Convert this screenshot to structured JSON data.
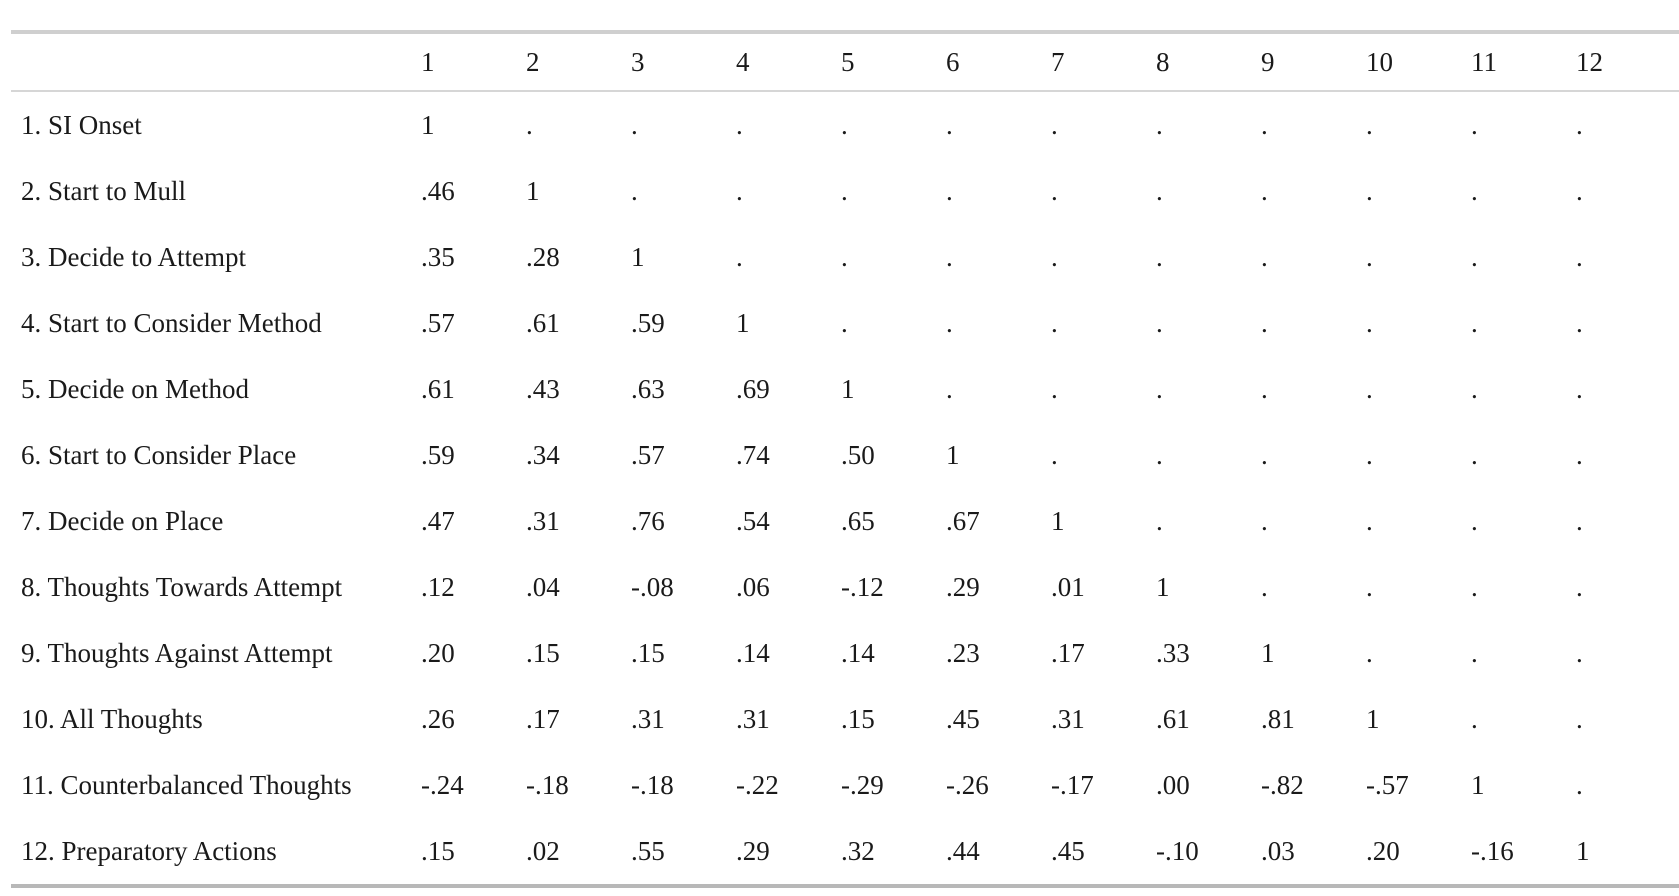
{
  "table": {
    "column_headers": [
      "",
      "1",
      "2",
      "3",
      "4",
      "5",
      "6",
      "7",
      "8",
      "9",
      "10",
      "11",
      "12"
    ],
    "rows": [
      {
        "label": "1. SI Onset",
        "cells": [
          "1",
          ".",
          ".",
          ".",
          ".",
          ".",
          ".",
          ".",
          ".",
          ".",
          ".",
          "."
        ]
      },
      {
        "label": "2. Start to Mull",
        "cells": [
          ".46",
          "1",
          ".",
          ".",
          ".",
          ".",
          ".",
          ".",
          ".",
          ".",
          ".",
          "."
        ]
      },
      {
        "label": "3. Decide to Attempt",
        "cells": [
          ".35",
          ".28",
          "1",
          ".",
          ".",
          ".",
          ".",
          ".",
          ".",
          ".",
          ".",
          "."
        ]
      },
      {
        "label": "4. Start to Consider Method",
        "cells": [
          ".57",
          ".61",
          ".59",
          "1",
          ".",
          ".",
          ".",
          ".",
          ".",
          ".",
          ".",
          "."
        ]
      },
      {
        "label": "5. Decide on Method",
        "cells": [
          ".61",
          ".43",
          ".63",
          ".69",
          "1",
          ".",
          ".",
          ".",
          ".",
          ".",
          ".",
          "."
        ]
      },
      {
        "label": "6. Start to Consider Place",
        "cells": [
          ".59",
          ".34",
          ".57",
          ".74",
          ".50",
          "1",
          ".",
          ".",
          ".",
          ".",
          ".",
          "."
        ]
      },
      {
        "label": "7. Decide on Place",
        "cells": [
          ".47",
          ".31",
          ".76",
          ".54",
          ".65",
          ".67",
          "1",
          ".",
          ".",
          ".",
          ".",
          "."
        ]
      },
      {
        "label": "8. Thoughts Towards Attempt",
        "cells": [
          ".12",
          ".04",
          "-.08",
          ".06",
          "-.12",
          ".29",
          ".01",
          "1",
          ".",
          ".",
          ".",
          "."
        ]
      },
      {
        "label": "9. Thoughts Against Attempt",
        "cells": [
          ".20",
          ".15",
          ".15",
          ".14",
          ".14",
          ".23",
          ".17",
          ".33",
          "1",
          ".",
          ".",
          "."
        ]
      },
      {
        "label": "10. All Thoughts",
        "cells": [
          ".26",
          ".17",
          ".31",
          ".31",
          ".15",
          ".45",
          ".31",
          ".61",
          ".81",
          "1",
          ".",
          "."
        ]
      },
      {
        "label": "11. Counterbalanced Thoughts",
        "cells": [
          "-.24",
          "-.18",
          "-.18",
          "-.22",
          "-.29",
          "-.26",
          "-.17",
          ".00",
          "-.82",
          "-.57",
          "1",
          "."
        ]
      },
      {
        "label": "12. Preparatory Actions",
        "cells": [
          ".15",
          ".02",
          ".55",
          ".29",
          ".32",
          ".44",
          ".45",
          "-.10",
          ".03",
          ".20",
          "-.16",
          "1"
        ]
      }
    ]
  }
}
